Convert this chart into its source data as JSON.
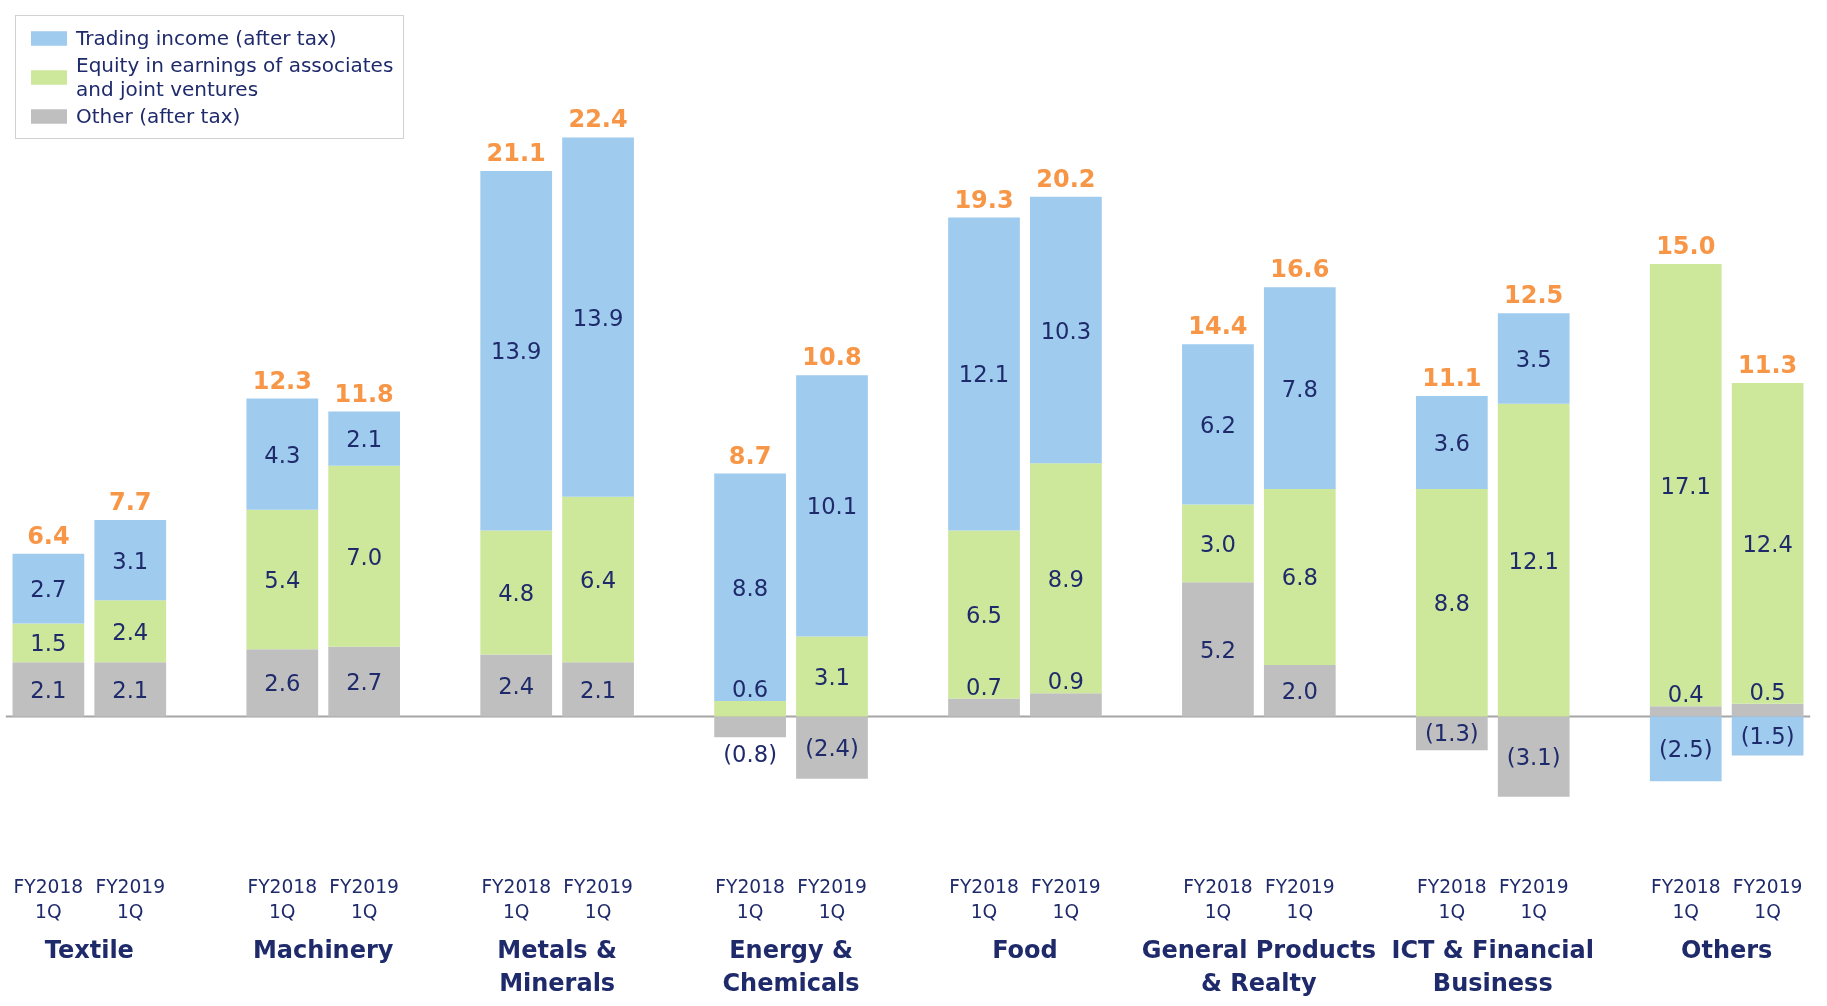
{
  "chart_data": {
    "type": "bar",
    "stacked": true,
    "categories": [
      "FY2018\n1Q",
      "FY2019\n1Q",
      "FY2018\n1Q",
      "FY2019\n1Q",
      "FY2018\n1Q",
      "FY2019\n1Q",
      "FY2018\n1Q",
      "FY2019\n1Q",
      "FY2018\n1Q",
      "FY2019\n1Q",
      "FY2018\n1Q",
      "FY2019\n1Q",
      "FY2018\n1Q",
      "FY2019\n1Q",
      "FY2018\n1Q",
      "FY2019\n1Q"
    ],
    "series": [
      {
        "name": "Other (after tax)",
        "color": "#bfbfbf",
        "values": [
          2.1,
          2.1,
          2.6,
          2.7,
          2.4,
          2.1,
          -0.8,
          -2.4,
          0.7,
          0.9,
          5.2,
          2.0,
          -1.3,
          -3.1,
          0.4,
          0.5
        ],
        "value_labels": [
          "2.1",
          "2.1",
          "2.6",
          "2.7",
          "2.4",
          "2.1",
          "(0.8)",
          "(2.4)",
          "0.7",
          "0.9",
          "5.2",
          "2.0",
          "(1.3)",
          "(3.1)",
          "0.4",
          "0.5"
        ]
      },
      {
        "name": "Equity in earnings of associates\nand joint ventures",
        "color": "#cde79b",
        "values": [
          1.5,
          2.4,
          5.4,
          7.0,
          4.8,
          6.4,
          0.6,
          3.1,
          6.5,
          8.9,
          3.0,
          6.8,
          8.8,
          12.1,
          17.1,
          12.4
        ],
        "value_labels": [
          "1.5",
          "2.4",
          "5.4",
          "7.0",
          "4.8",
          "6.4",
          "0.6",
          "3.1",
          "6.5",
          "8.9",
          "3.0",
          "6.8",
          "8.8",
          "12.1",
          "17.1",
          "12.4"
        ]
      },
      {
        "name": "Trading income (after tax)",
        "color": "#9fcbee",
        "values": [
          2.7,
          3.1,
          4.3,
          2.1,
          13.9,
          13.9,
          8.8,
          10.1,
          12.1,
          10.3,
          6.2,
          7.8,
          3.6,
          3.5,
          -2.5,
          -1.5
        ],
        "value_labels": [
          "2.7",
          "3.1",
          "4.3",
          "2.1",
          "13.9",
          "13.9",
          "8.8",
          "10.1",
          "12.1",
          "10.3",
          "6.2",
          "7.8",
          "3.6",
          "3.5",
          "(2.5)",
          "(1.5)"
        ]
      }
    ],
    "totals": [
      "6.4",
      "7.7",
      "12.3",
      "11.8",
      "21.1",
      "22.4",
      "8.7",
      "10.8",
      "19.3",
      "20.2",
      "14.4",
      "16.6",
      "11.1",
      "12.5",
      "15.0",
      "11.3"
    ],
    "annotations": [
      "Textile",
      "Machinery",
      "Metals &\nMinerals",
      "Energy &\nChemicals",
      "Food",
      "General Products\n& Realty",
      "ICT & Financial\nBusiness",
      "Others"
    ],
    "legend": "top left"
  }
}
